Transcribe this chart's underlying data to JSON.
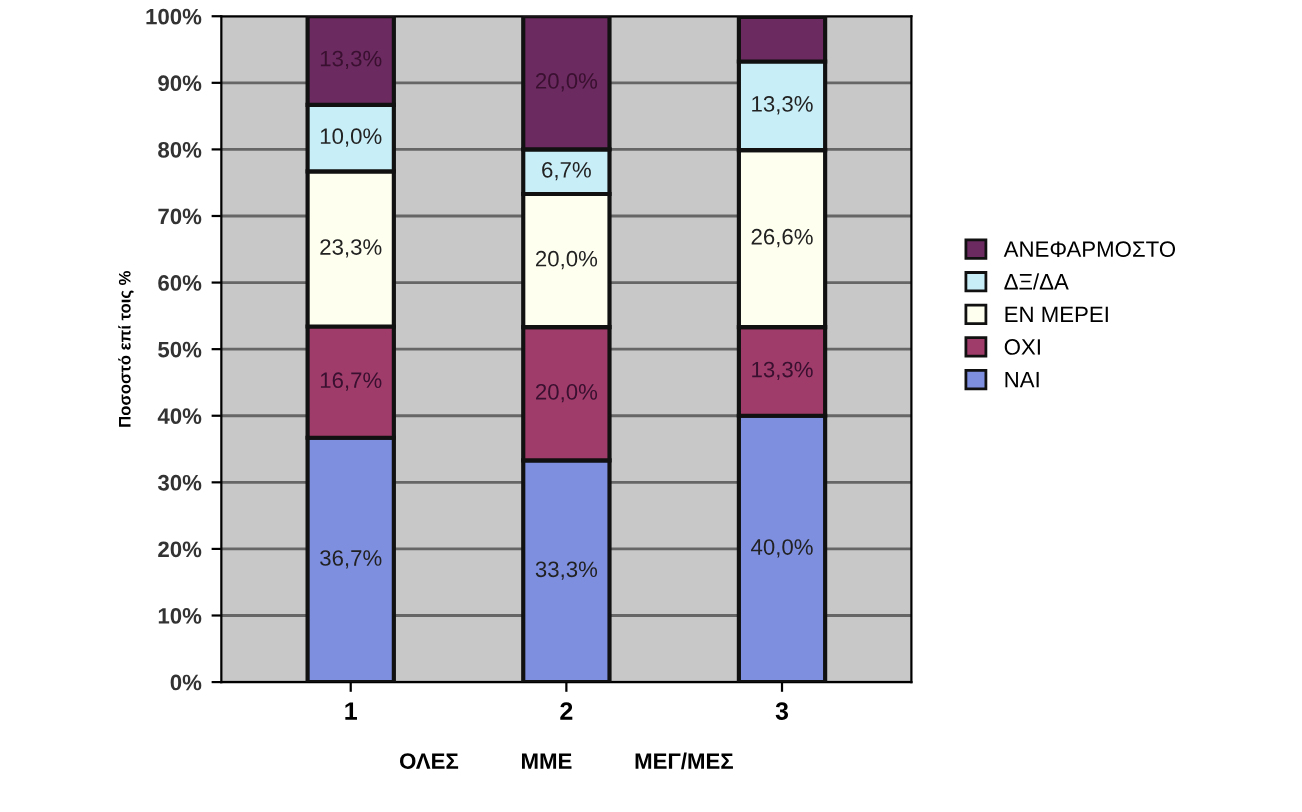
{
  "chart_data": {
    "type": "bar",
    "stacked": true,
    "ylabel": "Ποσοστό επί τοις %",
    "xlabel": "ΟΛΕΣ          ΜΜΕ          ΜΕΓ/ΜΕΣ",
    "categories": [
      "1",
      "2",
      "3"
    ],
    "ylim": [
      0,
      100
    ],
    "yticks": [
      {
        "value": 0,
        "label": "0%"
      },
      {
        "value": 10,
        "label": "10%"
      },
      {
        "value": 20,
        "label": "20%"
      },
      {
        "value": 30,
        "label": "30%"
      },
      {
        "value": 40,
        "label": "40%"
      },
      {
        "value": 50,
        "label": "50%"
      },
      {
        "value": 60,
        "label": "60%"
      },
      {
        "value": 70,
        "label": "70%"
      },
      {
        "value": 80,
        "label": "80%"
      },
      {
        "value": 90,
        "label": "90%"
      },
      {
        "value": 100,
        "label": "100%"
      }
    ],
    "grid": "y",
    "legend": "right",
    "series": [
      {
        "name": "ΝΑΙ",
        "color": "#7f8fe0",
        "values": [
          36.7,
          33.3,
          40.0
        ],
        "value_labels": [
          "36,7%",
          "33,3%",
          "40,0%"
        ]
      },
      {
        "name": "ΟΧΙ",
        "color": "#a03c6a",
        "values": [
          16.7,
          20.0,
          13.3
        ],
        "value_labels": [
          "16,7%",
          "20,0%",
          "13,3%"
        ]
      },
      {
        "name": "ΕΝ ΜΕΡΕΙ",
        "color": "#fffff0",
        "values": [
          23.3,
          20.0,
          26.6
        ],
        "value_labels": [
          "23,3%",
          "20,0%",
          "26,6%"
        ]
      },
      {
        "name": "ΔΞ/ΔΑ",
        "color": "#c8eef8",
        "values": [
          10.0,
          6.7,
          13.3
        ],
        "value_labels": [
          "10,0%",
          "6,7%",
          "13,3%"
        ]
      },
      {
        "name": "ΑΝΕΦΑΡΜΟΣΤΟ",
        "color": "#6b2a60",
        "values": [
          13.3,
          20.0,
          6.7
        ],
        "value_labels": [
          "13,3%",
          "20,0%",
          null
        ]
      }
    ]
  }
}
